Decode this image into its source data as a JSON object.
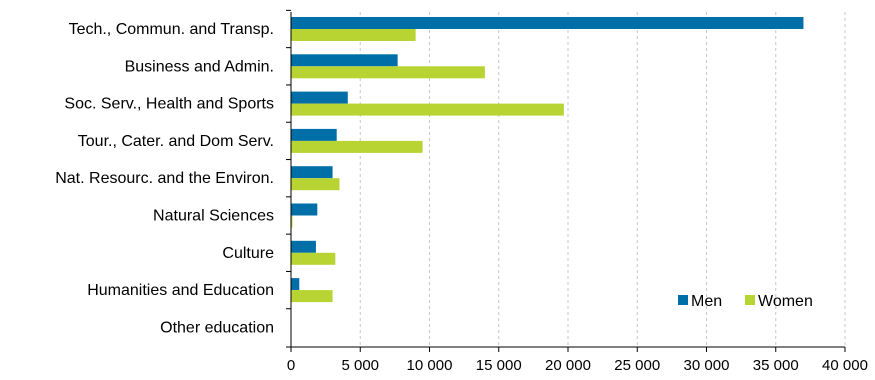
{
  "chart_data": {
    "type": "bar",
    "orientation": "horizontal",
    "categories": [
      "Tech., Commun. and Transp.",
      "Business and Admin.",
      "Soc. Serv., Health and Sports",
      "Tour., Cater. and Dom Serv.",
      "Nat. Resourc. and the Environ.",
      "Natural Sciences",
      "Culture",
      "Humanities and Education",
      "Other education"
    ],
    "series": [
      {
        "name": "Men",
        "color": "#006ea7",
        "values": [
          37000,
          7700,
          4100,
          3300,
          3000,
          1900,
          1800,
          600,
          0
        ]
      },
      {
        "name": "Women",
        "color": "#b8d432",
        "values": [
          9000,
          14000,
          19700,
          9500,
          3500,
          100,
          3200,
          3000,
          0
        ]
      }
    ],
    "xlim": [
      0,
      40000
    ],
    "xticks": [
      0,
      5000,
      10000,
      15000,
      20000,
      25000,
      30000,
      35000,
      40000
    ],
    "xtick_labels": [
      "0",
      "5 000",
      "10 000",
      "15 000",
      "20 000",
      "25 000",
      "30 000",
      "35 000",
      "40 000"
    ],
    "grid": "vertical dashed",
    "legend_position": "bottom-right",
    "title": "",
    "xlabel": "",
    "ylabel": ""
  }
}
